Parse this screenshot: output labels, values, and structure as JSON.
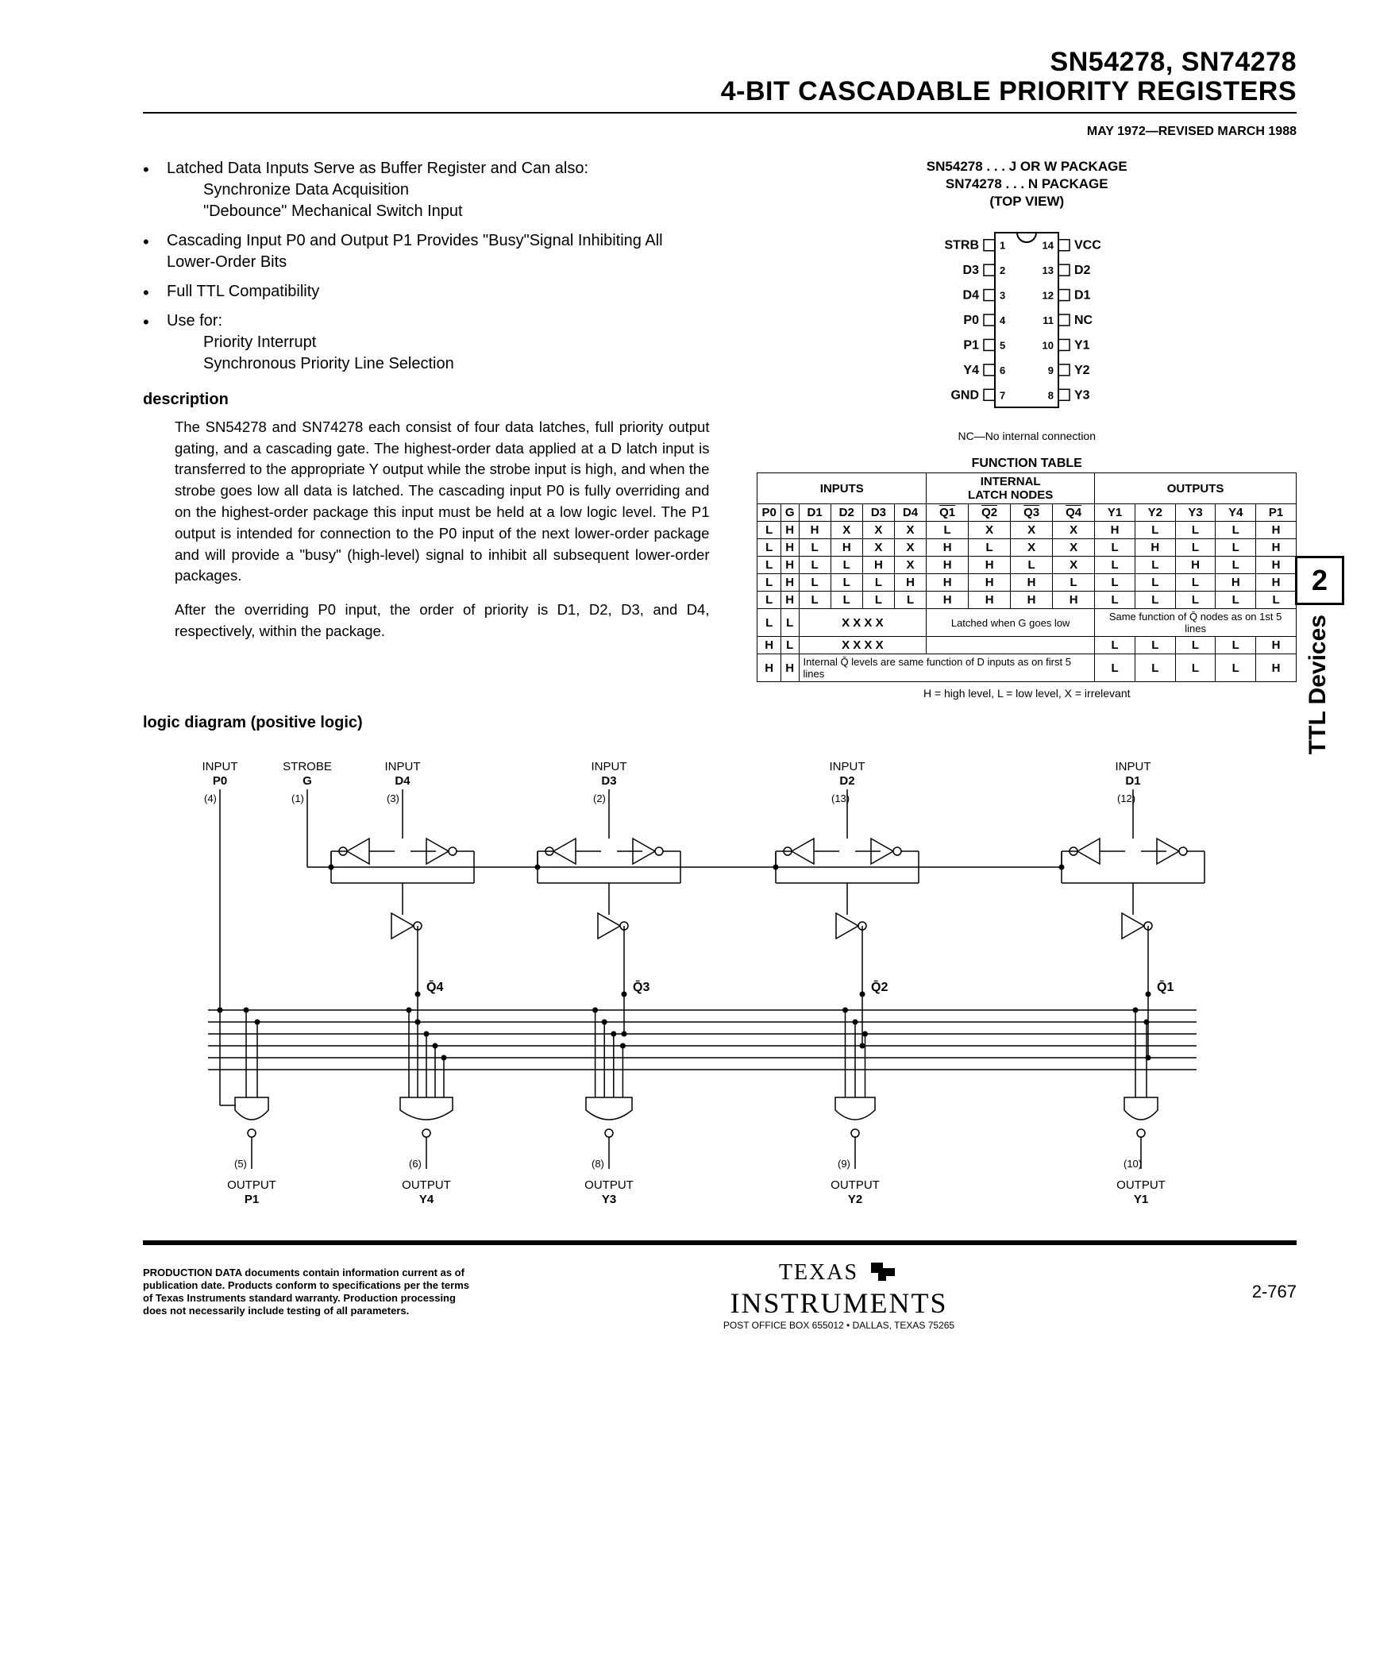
{
  "header": {
    "line1": "SN54278, SN74278",
    "line2": "4-BIT CASCADABLE PRIORITY REGISTERS",
    "date": "MAY 1972—REVISED MARCH 1988"
  },
  "features": [
    {
      "main": "Latched Data Inputs Serve as Buffer Register and Can also:",
      "subs": [
        "Synchronize Data Acquisition",
        "\"Debounce\" Mechanical Switch Input"
      ]
    },
    {
      "main": "Cascading Input P0 and Output P1 Provides \"Busy\"Signal Inhibiting All Lower-Order Bits"
    },
    {
      "main": "Full TTL Compatibility"
    },
    {
      "main": "Use for:",
      "subs": [
        "Priority Interrupt",
        "Synchronous Priority Line Selection"
      ]
    }
  ],
  "description_label": "description",
  "description_paras": [
    "The SN54278 and SN74278 each consist of four data latches, full priority output gating, and a cascading gate. The highest-order data applied at a D latch input is transferred to the appropriate Y output while the strobe input is high, and when the strobe goes low all data is latched. The cascading input P0 is fully overriding and on the highest-order package this input must be held at a low logic level. The P1 output is intended for connection to the P0 input of the next lower-order package and will provide a \"busy\" (high-level) signal to inhibit all subsequent lower-order packages.",
    "After the overriding P0 input, the order of priority is D1, D2, D3, and D4, respectively, within the package."
  ],
  "pinout": {
    "title_lines": [
      "SN54278 . . . J OR W PACKAGE",
      "SN74278 . . . N PACKAGE",
      "(TOP VIEW)"
    ],
    "left_pins": [
      "STRB",
      "D3",
      "D4",
      "P0",
      "P1",
      "Y4",
      "GND"
    ],
    "right_pins": [
      "VCC",
      "D2",
      "D1",
      "NC",
      "Y1",
      "Y2",
      "Y3"
    ],
    "nc_note": "NC—No internal connection"
  },
  "function_table": {
    "title": "FUNCTION TABLE",
    "group_headers": [
      "INPUTS",
      "INTERNAL LATCH NODES",
      "OUTPUTS"
    ],
    "col_headers": [
      "P0",
      "G",
      "D1",
      "D2",
      "D3",
      "D4",
      "Q1",
      "Q2",
      "Q3",
      "Q4",
      "Y1",
      "Y2",
      "Y3",
      "Y4",
      "P1"
    ],
    "overline_cols": [
      6,
      7,
      8,
      9
    ],
    "rows": [
      [
        "L",
        "H",
        "H",
        "X",
        "X",
        "X",
        "L",
        "X",
        "X",
        "X",
        "H",
        "L",
        "L",
        "L",
        "H"
      ],
      [
        "L",
        "H",
        "L",
        "H",
        "X",
        "X",
        "H",
        "L",
        "X",
        "X",
        "L",
        "H",
        "L",
        "L",
        "H"
      ],
      [
        "L",
        "H",
        "L",
        "L",
        "H",
        "X",
        "H",
        "H",
        "L",
        "X",
        "L",
        "L",
        "H",
        "L",
        "H"
      ],
      [
        "L",
        "H",
        "L",
        "L",
        "L",
        "H",
        "H",
        "H",
        "H",
        "L",
        "L",
        "L",
        "L",
        "H",
        "H"
      ],
      [
        "L",
        "H",
        "L",
        "L",
        "L",
        "L",
        "H",
        "H",
        "H",
        "H",
        "L",
        "L",
        "L",
        "L",
        "L"
      ]
    ],
    "special_rows": [
      {
        "p0": "L",
        "g": "L",
        "d": "X  X  X  X",
        "note": "Latched when G goes low",
        "out": "Same function of Q̄ nodes as on 1st 5 lines"
      },
      {
        "p0": "H",
        "g": "L",
        "d": "X  X  X  X",
        "note": "",
        "out_cells": [
          "L",
          "L",
          "L",
          "L",
          "H"
        ]
      },
      {
        "p0": "H",
        "g": "H",
        "d_note": "Internal Q̄ levels are same function of D inputs as on first 5 lines",
        "out_cells": [
          "L",
          "L",
          "L",
          "L",
          "H"
        ]
      }
    ],
    "legend": "H = high level, L = low level, X = irrelevant"
  },
  "logic_diagram_label": "logic diagram (positive logic)",
  "logic_diagram": {
    "top_labels": [
      {
        "t": "INPUT",
        "s": "P0",
        "pin": "(4)"
      },
      {
        "t": "STROBE",
        "s": "G",
        "pin": "(1)"
      },
      {
        "t": "INPUT",
        "s": "D4",
        "pin": "(3)"
      },
      {
        "t": "INPUT",
        "s": "D3",
        "pin": "(2)"
      },
      {
        "t": "INPUT",
        "s": "D2",
        "pin": "(13)"
      },
      {
        "t": "INPUT",
        "s": "D1",
        "pin": "(12)"
      }
    ],
    "q_labels": [
      "Q̄4",
      "Q̄3",
      "Q̄2",
      "Q̄1"
    ],
    "bottom_labels": [
      {
        "t": "OUTPUT",
        "s": "P1",
        "pin": "(5)"
      },
      {
        "t": "OUTPUT",
        "s": "Y4",
        "pin": "(6)"
      },
      {
        "t": "OUTPUT",
        "s": "Y3",
        "pin": "(8)"
      },
      {
        "t": "OUTPUT",
        "s": "Y2",
        "pin": "(9)"
      },
      {
        "t": "OUTPUT",
        "s": "Y1",
        "pin": "(10)"
      }
    ]
  },
  "side_tab": {
    "num": "2",
    "text": "TTL Devices"
  },
  "footer": {
    "disclaimer": "PRODUCTION DATA documents contain information current as of publication date. Products conform to specifications per the terms of Texas Instruments standard warranty. Production processing does not necessarily include testing of all parameters.",
    "logo_top": "TEXAS",
    "logo_bottom": "INSTRUMENTS",
    "address": "POST OFFICE BOX 655012 • DALLAS, TEXAS 75265",
    "page": "2-767"
  },
  "colors": {
    "bg": "#ffffff",
    "fg": "#000000"
  }
}
